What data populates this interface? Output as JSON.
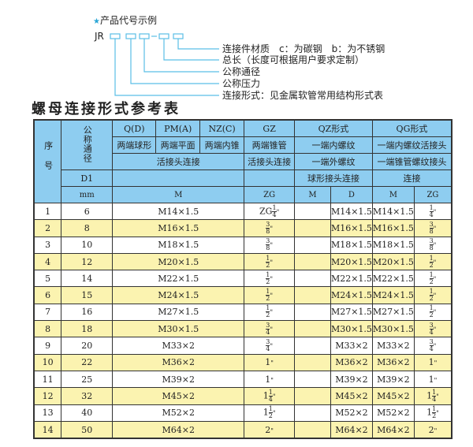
{
  "code_example": {
    "title": "产品代号示例",
    "prefix": "JR",
    "dash": "-",
    "line_color": "#5bbfe6",
    "labels": [
      "连接件材质　c：为碳钢　b：为不锈钢",
      "总长（长度可根据用户要求定制）",
      "公称通径",
      "公称压力",
      "连接形式：见金属软管常用结构形式表"
    ]
  },
  "table_title": "螺母连接形式参考表",
  "colors": {
    "header_bg": "#8ecdf0",
    "alt_row_bg": "#fbf3b0"
  },
  "header": {
    "seq": "序号",
    "dn": "公称通径",
    "qd": "Q(D)",
    "pm": "PM(A)",
    "nz": "NZ(C)",
    "gz": "GZ",
    "qz": "QZ形式",
    "qg": "QG形式",
    "qd2": "两端球形",
    "pm2": "两端平面",
    "nz2": "两端内锥",
    "gz2": "两端锥管",
    "qz2": "一端内螺纹",
    "qg2": "一端内螺纹活接头",
    "hj": "活接头连接",
    "gz3": "活接头连接",
    "qz3": "一端外螺纹",
    "qg3": "一端锥管螺纹接头",
    "d1": "D1",
    "qz4": "球形接头连接",
    "qg4": "连接",
    "mm": "mm",
    "m": "M",
    "zg": "ZG",
    "qz_m": "M",
    "qz_d": "D",
    "qg_m": "M",
    "qg_zg": "ZG"
  },
  "rows": [
    {
      "no": "1",
      "dn": "6",
      "m": "M14×1.5",
      "zg": {
        "pre": "ZG",
        "whole": "",
        "num": "1",
        "den": "4",
        "unit": "\""
      },
      "qz_m": "",
      "qz_d": "M14×1.5",
      "qg_m": "M14×1.5",
      "qg_zg": {
        "pre": "",
        "whole": "",
        "num": "1",
        "den": "4",
        "unit": "\""
      }
    },
    {
      "no": "2",
      "dn": "8",
      "m": "M16×1.5",
      "zg": {
        "pre": "",
        "whole": "",
        "num": "3",
        "den": "8",
        "unit": "\""
      },
      "qz_m": "",
      "qz_d": "M16×1.5",
      "qg_m": "M16×1.5",
      "qg_zg": {
        "pre": "",
        "whole": "",
        "num": "3",
        "den": "8",
        "unit": "\""
      }
    },
    {
      "no": "3",
      "dn": "10",
      "m": "M18×1.5",
      "zg": {
        "pre": "",
        "whole": "",
        "num": "3",
        "den": "8",
        "unit": "\""
      },
      "qz_m": "",
      "qz_d": "M18×1.5",
      "qg_m": "M18×1.5",
      "qg_zg": {
        "pre": "",
        "whole": "",
        "num": "3",
        "den": "8",
        "unit": "\""
      }
    },
    {
      "no": "4",
      "dn": "12",
      "m": "M20×1.5",
      "zg": {
        "pre": "",
        "whole": "",
        "num": "1",
        "den": "2",
        "unit": "\""
      },
      "qz_m": "",
      "qz_d": "M20×1.5",
      "qg_m": "M20×1.5",
      "qg_zg": {
        "pre": "",
        "whole": "",
        "num": "1",
        "den": "2",
        "unit": "\""
      }
    },
    {
      "no": "5",
      "dn": "14",
      "m": "M22×1.5",
      "zg": {
        "pre": "",
        "whole": "",
        "num": "1",
        "den": "2",
        "unit": "\""
      },
      "qz_m": "",
      "qz_d": "M22×1.5",
      "qg_m": "M22×1.5",
      "qg_zg": {
        "pre": "",
        "whole": "",
        "num": "1",
        "den": "2",
        "unit": "\""
      }
    },
    {
      "no": "6",
      "dn": "15",
      "m": "M24×1.5",
      "zg": {
        "pre": "",
        "whole": "",
        "num": "1",
        "den": "2",
        "unit": "\""
      },
      "qz_m": "",
      "qz_d": "M24×1.5",
      "qg_m": "M24×1.5",
      "qg_zg": {
        "pre": "",
        "whole": "",
        "num": "1",
        "den": "2",
        "unit": "\""
      }
    },
    {
      "no": "7",
      "dn": "16",
      "m": "M27×1.5",
      "zg": {
        "pre": "",
        "whole": "",
        "num": "1",
        "den": "2",
        "unit": "\""
      },
      "qz_m": "",
      "qz_d": "M27×1.5",
      "qg_m": "M27×1.5",
      "qg_zg": {
        "pre": "",
        "whole": "",
        "num": "1",
        "den": "2",
        "unit": "\""
      }
    },
    {
      "no": "8",
      "dn": "18",
      "m": "M30×1.5",
      "zg": {
        "pre": "",
        "whole": "",
        "num": "3",
        "den": "4",
        "unit": "\""
      },
      "qz_m": "",
      "qz_d": "M30×1.5",
      "qg_m": "M30×1.5",
      "qg_zg": {
        "pre": "",
        "whole": "",
        "num": "3",
        "den": "4",
        "unit": "\""
      }
    },
    {
      "no": "9",
      "dn": "20",
      "m": "M33×2",
      "zg": {
        "pre": "",
        "whole": "",
        "num": "3",
        "den": "4",
        "unit": "\""
      },
      "qz_m": "",
      "qz_d": "M33×2",
      "qg_m": "M33×2",
      "qg_zg": {
        "pre": "",
        "whole": "",
        "num": "3",
        "den": "4",
        "unit": "\""
      }
    },
    {
      "no": "10",
      "dn": "22",
      "m": "M36×2",
      "zg": {
        "pre": "",
        "whole": "1",
        "num": "",
        "den": "",
        "unit": "\""
      },
      "qz_m": "",
      "qz_d": "M36×2",
      "qg_m": "M36×2",
      "qg_zg": {
        "pre": "",
        "whole": "1",
        "num": "",
        "den": "",
        "unit": "\""
      }
    },
    {
      "no": "11",
      "dn": "25",
      "m": "M39×2",
      "zg": {
        "pre": "",
        "whole": "1",
        "num": "",
        "den": "",
        "unit": "\""
      },
      "qz_m": "",
      "qz_d": "M39×2",
      "qg_m": "M39×2",
      "qg_zg": {
        "pre": "",
        "whole": "1",
        "num": "",
        "den": "",
        "unit": "\""
      }
    },
    {
      "no": "12",
      "dn": "32",
      "m": "M45×2",
      "zg": {
        "pre": "",
        "whole": "1",
        "num": "1",
        "den": "4",
        "unit": "\""
      },
      "qz_m": "",
      "qz_d": "M45×2",
      "qg_m": "M45×2",
      "qg_zg": {
        "pre": "",
        "whole": "1",
        "num": "1",
        "den": "4",
        "unit": "\""
      }
    },
    {
      "no": "13",
      "dn": "40",
      "m": "M52×2",
      "zg": {
        "pre": "",
        "whole": "1",
        "num": "1",
        "den": "2",
        "unit": "\""
      },
      "qz_m": "",
      "qz_d": "M52×2",
      "qg_m": "M52×2",
      "qg_zg": {
        "pre": "",
        "whole": "1",
        "num": "1",
        "den": "2",
        "unit": "\""
      }
    },
    {
      "no": "14",
      "dn": "50",
      "m": "M64×2",
      "zg": {
        "pre": "",
        "whole": "2",
        "num": "",
        "den": "",
        "unit": "\""
      },
      "qz_m": "",
      "qz_d": "M64×2",
      "qg_m": "M64×2",
      "qg_zg": {
        "pre": "",
        "whole": "2",
        "num": "",
        "den": "",
        "unit": "\""
      }
    }
  ]
}
